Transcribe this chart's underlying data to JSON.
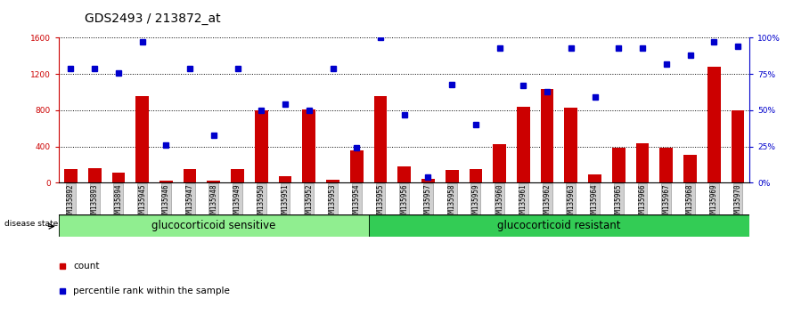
{
  "title": "GDS2493 / 213872_at",
  "samples": [
    "GSM135892",
    "GSM135893",
    "GSM135894",
    "GSM135945",
    "GSM135946",
    "GSM135947",
    "GSM135948",
    "GSM135949",
    "GSM135950",
    "GSM135951",
    "GSM135952",
    "GSM135953",
    "GSM135954",
    "GSM135955",
    "GSM135956",
    "GSM135957",
    "GSM135958",
    "GSM135959",
    "GSM135960",
    "GSM135961",
    "GSM135962",
    "GSM135963",
    "GSM135964",
    "GSM135965",
    "GSM135966",
    "GSM135967",
    "GSM135968",
    "GSM135969",
    "GSM135970"
  ],
  "counts": [
    150,
    160,
    110,
    960,
    20,
    150,
    20,
    150,
    800,
    70,
    810,
    30,
    360,
    960,
    180,
    40,
    140,
    150,
    430,
    840,
    1030,
    830,
    90,
    390,
    440,
    390,
    310,
    1280,
    800
  ],
  "percentiles": [
    79,
    79,
    76,
    97,
    26,
    79,
    33,
    79,
    50,
    54,
    50,
    79,
    24,
    100,
    47,
    4,
    68,
    40,
    93,
    67,
    63,
    93,
    59,
    93,
    93,
    82,
    88,
    97,
    94
  ],
  "n_sensitive": 13,
  "n_resistant": 16,
  "group1_label": "glucocorticoid sensitive",
  "group2_label": "glucocorticoid resistant",
  "disease_state_label": "disease state",
  "legend1": "count",
  "legend2": "percentile rank within the sample",
  "bar_color": "#cc0000",
  "dot_color": "#0000cc",
  "ylim_left": [
    0,
    1600
  ],
  "ylim_right": [
    0,
    100
  ],
  "yticks_left": [
    0,
    400,
    800,
    1200,
    1600
  ],
  "yticks_right": [
    0,
    25,
    50,
    75,
    100
  ],
  "group1_color": "#90ee90",
  "group2_color": "#33cc55",
  "title_fontsize": 10,
  "tick_fontsize": 6.5,
  "label_fontsize": 8.5
}
